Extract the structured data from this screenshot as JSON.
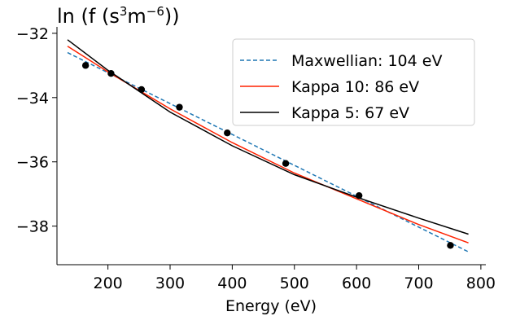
{
  "chart_data": {
    "type": "line",
    "title": "ln (f (s³m⁻⁶))",
    "title_parts": {
      "prefix": "ln (f (s",
      "sup1": "3",
      "mid": "m",
      "sup2": "−6",
      "suffix": "))"
    },
    "xlabel": "Energy (eV)",
    "ylabel": "",
    "xlim": [
      118,
      808
    ],
    "ylim": [
      -39.2,
      -31.8
    ],
    "xticks": [
      200,
      300,
      400,
      500,
      600,
      700,
      800
    ],
    "xtick_labels": [
      "200",
      "300",
      "400",
      "500",
      "600",
      "700",
      "800"
    ],
    "yticks": [
      -32,
      -34,
      -36,
      -38
    ],
    "ytick_labels": [
      "−32",
      "−34",
      "−36",
      "−38"
    ],
    "grid": false,
    "legend_position": "top-right",
    "points": {
      "x": [
        164,
        205,
        254,
        315,
        392,
        486,
        604,
        751
      ],
      "y": [
        -33.0,
        -33.25,
        -33.75,
        -34.3,
        -35.1,
        -36.05,
        -37.05,
        -38.6
      ],
      "color": "#000000"
    },
    "series": [
      {
        "name": "Maxwellian: 104 eV",
        "style": "dashed",
        "color": "#1f77b4",
        "x": [
          135,
          780
        ],
        "y": [
          -32.6,
          -38.8
        ]
      },
      {
        "name": "Kappa 10: 86 eV",
        "style": "solid",
        "color": "#ff2200",
        "x": [
          135,
          200,
          300,
          400,
          500,
          600,
          700,
          780
        ],
        "y": [
          -32.4,
          -33.2,
          -34.35,
          -35.4,
          -36.35,
          -37.15,
          -37.95,
          -38.52
        ]
      },
      {
        "name": "Kappa 5: 67 eV",
        "style": "solid",
        "color": "#000000",
        "x": [
          135,
          200,
          300,
          400,
          500,
          600,
          700,
          780
        ],
        "y": [
          -32.2,
          -33.15,
          -34.45,
          -35.5,
          -36.4,
          -37.1,
          -37.75,
          -38.25
        ]
      }
    ]
  }
}
